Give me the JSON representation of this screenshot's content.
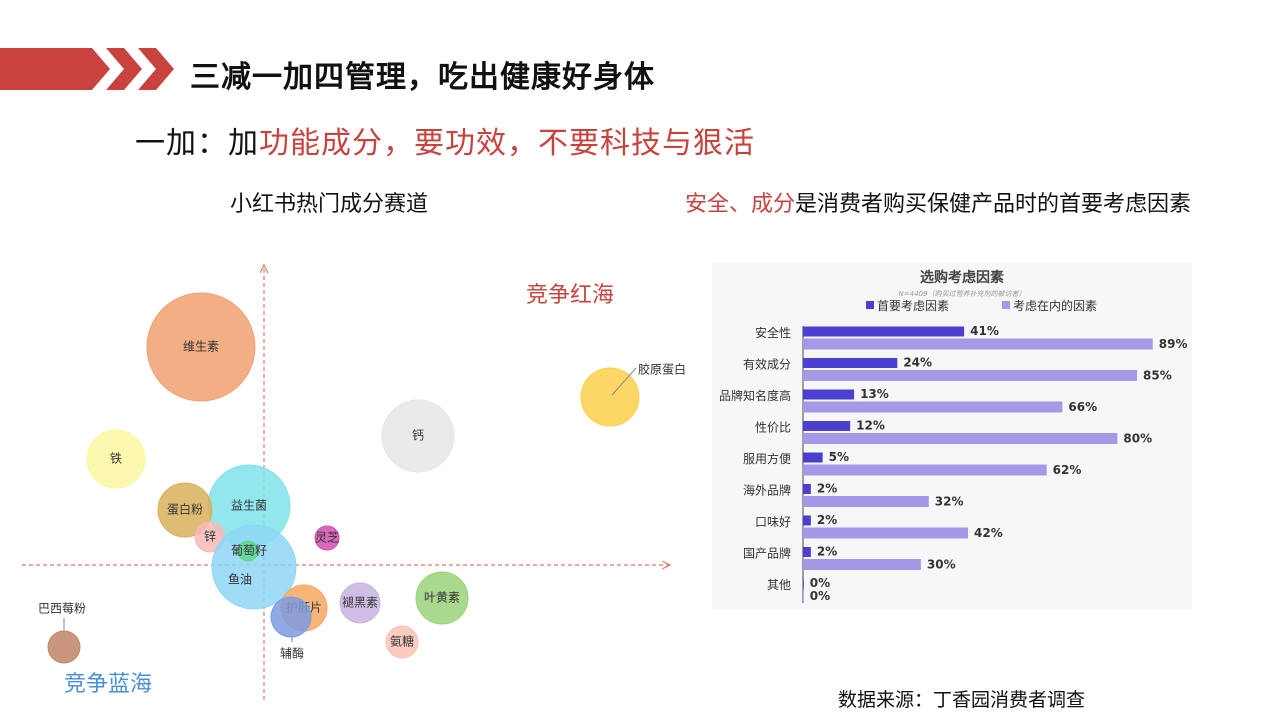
{
  "title": "三减一加四管理，吃出健康好身体",
  "subtitle": {
    "prefix": "一加：加",
    "highlight": "功能成分，要功效，不要科技与狠活"
  },
  "left_caption": "小红书热门成分赛道",
  "right_caption": {
    "highlight": "安全、成分",
    "rest": "是消费者购买保健产品时的首要考虑因素"
  },
  "source": "数据来源：丁香园消费者调查",
  "colors": {
    "accent_red": "#c8433d",
    "accent_blue": "#4a8fd4",
    "primary_series": "#4b3fd0",
    "secondary_series": "#a598e6"
  },
  "chart_data": [
    {
      "type": "scatter",
      "title": "",
      "quadrant_labels": {
        "top_right": "竞争红海",
        "bottom_left": "竞争蓝海"
      },
      "points": [
        {
          "name": "维生素",
          "color": "#f0a070"
        },
        {
          "name": "胶原蛋白",
          "color": "#fcd04a"
        },
        {
          "name": "钙",
          "color": "#e6e6e6"
        },
        {
          "name": "铁",
          "color": "#fcf7a0"
        },
        {
          "name": "益生菌",
          "color": "#7fe3ea"
        },
        {
          "name": "蛋白粉",
          "color": "#d9b05c"
        },
        {
          "name": "锌",
          "color": "#f7b8b8"
        },
        {
          "name": "灵芝",
          "color": "#d24fae"
        },
        {
          "name": "鱼油",
          "color": "#8ed7f5"
        },
        {
          "name": "葡萄籽",
          "color": "#5ed88a"
        },
        {
          "name": "护肝片",
          "color": "#f3a862"
        },
        {
          "name": "辅酶",
          "color": "#7d9be0"
        },
        {
          "name": "褪黑素",
          "color": "#c8b3e3"
        },
        {
          "name": "叶黄素",
          "color": "#9ad27a"
        },
        {
          "name": "氨糖",
          "color": "#f9c3b5"
        },
        {
          "name": "巴西莓粉",
          "color": "#c0856a"
        }
      ]
    },
    {
      "type": "bar",
      "title": "选购考虑因素",
      "note": "N=4409（购买过营养补充剂的被访者）",
      "categories": [
        "安全性",
        "有效成分",
        "品牌知名度高",
        "性价比",
        "服用方便",
        "海外品牌",
        "口味好",
        "国产品牌",
        "其他"
      ],
      "series": [
        {
          "name": "首要考虑因素",
          "values": [
            41,
            24,
            13,
            12,
            5,
            2,
            2,
            2,
            0
          ]
        },
        {
          "name": "考虑在内的因素",
          "values": [
            89,
            85,
            66,
            80,
            62,
            32,
            42,
            30,
            0
          ]
        }
      ],
      "unit": "%",
      "xlim": [
        0,
        100
      ],
      "legend": "top"
    }
  ]
}
